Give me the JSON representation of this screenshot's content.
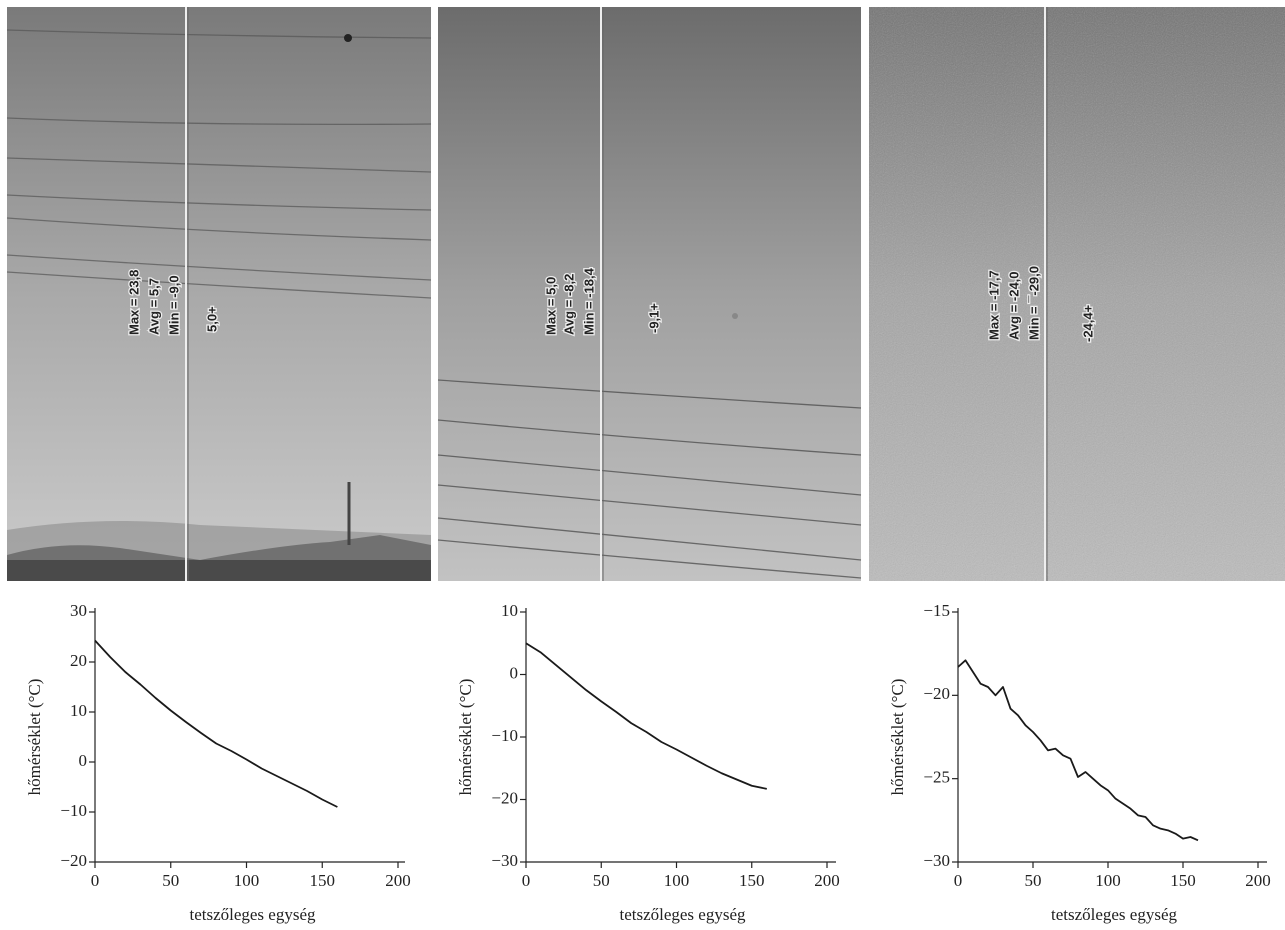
{
  "chart_data": [
    {
      "type": "line",
      "xlabel": "tetszőleges egység",
      "ylabel": "hőmérséklet (°C)",
      "annotations": [
        "Max = 23,8",
        "Avg = 5,7",
        "Min = -9,0"
      ],
      "spot_label": "5,0+",
      "x": [
        0,
        10,
        20,
        30,
        40,
        50,
        60,
        70,
        80,
        90,
        100,
        110,
        120,
        130,
        140,
        150,
        160
      ],
      "values": [
        24.3,
        21,
        18,
        15.5,
        12.8,
        10.3,
        8,
        5.8,
        3.7,
        2.2,
        0.5,
        -1.3,
        -2.8,
        -4.3,
        -5.8,
        -7.5,
        -9
      ],
      "color": "#1a1a1a",
      "xlim": [
        0,
        200
      ],
      "xticks": [
        0,
        50,
        100,
        150,
        200
      ],
      "ylim": [
        -20,
        30
      ],
      "yticks": [
        {
          "value": -20,
          "label": "−20"
        },
        {
          "value": -10,
          "label": "−10"
        },
        0,
        10,
        20,
        30
      ]
    },
    {
      "type": "line",
      "xlabel": "tetszőleges egység",
      "ylabel": "hőmérséklet (°C)",
      "annotations": [
        "Max = 5,0",
        "Avg = -8,2",
        "Min = -18,4"
      ],
      "spot_label": "-9,1+",
      "x": [
        0,
        10,
        20,
        30,
        40,
        50,
        60,
        70,
        80,
        90,
        100,
        110,
        120,
        130,
        140,
        150,
        160
      ],
      "values": [
        5,
        3.5,
        1.5,
        -0.5,
        -2.5,
        -4.3,
        -6,
        -7.8,
        -9.2,
        -10.8,
        -12,
        -13.3,
        -14.6,
        -15.8,
        -16.8,
        -17.8,
        -18.3
      ],
      "color": "#1a1a1a",
      "xlim": [
        0,
        200
      ],
      "xticks": [
        0,
        50,
        100,
        150,
        200
      ],
      "ylim": [
        -30,
        10
      ],
      "yticks": [
        {
          "value": -30,
          "label": "−30"
        },
        {
          "value": -20,
          "label": "−20"
        },
        {
          "value": -10,
          "label": "−10"
        },
        0,
        10
      ]
    },
    {
      "type": "line",
      "xlabel": "tetszőleges egység",
      "ylabel": "hőmérséklet (°C)",
      "annotations": [
        "Max = -17,7",
        "Avg = -24,0",
        "Min = ¯-29,0"
      ],
      "spot_label": "-24,4+",
      "x": [
        0,
        5,
        10,
        15,
        20,
        25,
        30,
        35,
        40,
        45,
        50,
        55,
        60,
        65,
        70,
        75,
        80,
        85,
        90,
        95,
        100,
        105,
        110,
        115,
        120,
        125,
        130,
        135,
        140,
        145,
        150,
        155,
        160
      ],
      "values": [
        -18.3,
        -17.9,
        -18.6,
        -19.3,
        -19.5,
        -20,
        -19.5,
        -20.8,
        -21.2,
        -21.8,
        -22.2,
        -22.7,
        -23.3,
        -23.2,
        -23.6,
        -23.8,
        -24.9,
        -24.6,
        -25,
        -25.4,
        -25.7,
        -26.2,
        -26.5,
        -26.8,
        -27.2,
        -27.3,
        -27.8,
        -28,
        -28.1,
        -28.3,
        -28.6,
        -28.5,
        -28.7
      ],
      "color": "#1a1a1a",
      "xlim": [
        0,
        200
      ],
      "xticks": [
        0,
        50,
        100,
        150,
        200
      ],
      "ylim": [
        -30,
        -15
      ],
      "yticks": [
        {
          "value": -30,
          "label": "−30"
        },
        {
          "value": -25,
          "label": "−25"
        },
        {
          "value": -20,
          "label": "−20"
        },
        {
          "value": -15,
          "label": "−15"
        }
      ]
    }
  ]
}
